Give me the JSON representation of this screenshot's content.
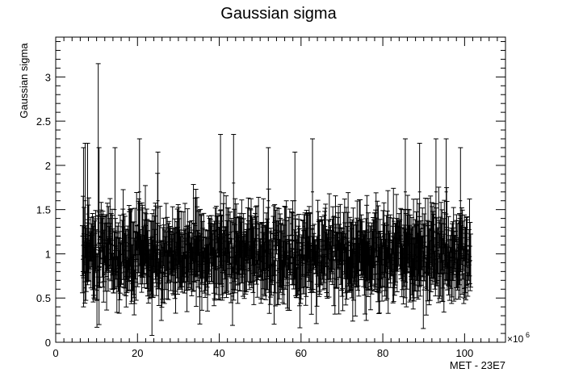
{
  "chart_data": {
    "type": "scatter",
    "title": "Gaussian sigma",
    "xlabel": "MET - 23E7",
    "ylabel": "Gaussian sigma",
    "x_multiplier_label": "×10",
    "x_multiplier_exp": "6",
    "xlim": [
      0,
      110
    ],
    "ylim": [
      0,
      3.45
    ],
    "x_ticks": [
      0,
      20,
      40,
      60,
      80,
      100
    ],
    "x_tick_labels": [
      "0",
      "20",
      "40",
      "60",
      "80",
      "100"
    ],
    "y_ticks": [
      0,
      0.5,
      1,
      1.5,
      2,
      2.5,
      3
    ],
    "y_tick_labels": [
      "0",
      "0.5",
      "1",
      "1.5",
      "2",
      "2.5",
      "3"
    ],
    "grid": false,
    "legend": "none",
    "series_color": "#000000",
    "series": [
      {
        "x_range": [
          6.5,
          101.5
        ],
        "y_center_typical": 1.0,
        "y_range_typical": [
          0.15,
          1.85
        ],
        "error_bar_half_height_typical": 0.3,
        "points": [
          {
            "x": 6.8,
            "y": 1.3,
            "yerr": 0.9
          },
          {
            "x": 7.2,
            "y": 1.6,
            "yerr": 0.65
          },
          {
            "x": 7.8,
            "y": 1.45,
            "yerr": 0.8
          },
          {
            "x": 10.4,
            "y": 2.2,
            "yerr": 0.95
          },
          {
            "x": 10.6,
            "y": 1.2,
            "yerr": 1.0
          },
          {
            "x": 14.5,
            "y": 1.5,
            "yerr": 0.7
          },
          {
            "x": 20.5,
            "y": 1.7,
            "yerr": 0.6
          },
          {
            "x": 25.0,
            "y": 1.6,
            "yerr": 0.55
          },
          {
            "x": 40.3,
            "y": 1.7,
            "yerr": 0.65
          },
          {
            "x": 43.5,
            "y": 1.8,
            "yerr": 0.55
          },
          {
            "x": 52.0,
            "y": 1.6,
            "yerr": 0.6
          },
          {
            "x": 58.5,
            "y": 1.6,
            "yerr": 0.55
          },
          {
            "x": 62.8,
            "y": 1.7,
            "yerr": 0.6
          },
          {
            "x": 85.5,
            "y": 1.7,
            "yerr": 0.6
          },
          {
            "x": 89.0,
            "y": 1.7,
            "yerr": 0.55
          },
          {
            "x": 93.0,
            "y": 1.7,
            "yerr": 0.6
          },
          {
            "x": 95.5,
            "y": 1.7,
            "yerr": 0.6
          },
          {
            "x": 99.0,
            "y": 1.6,
            "yerr": 0.6
          }
        ]
      }
    ]
  }
}
